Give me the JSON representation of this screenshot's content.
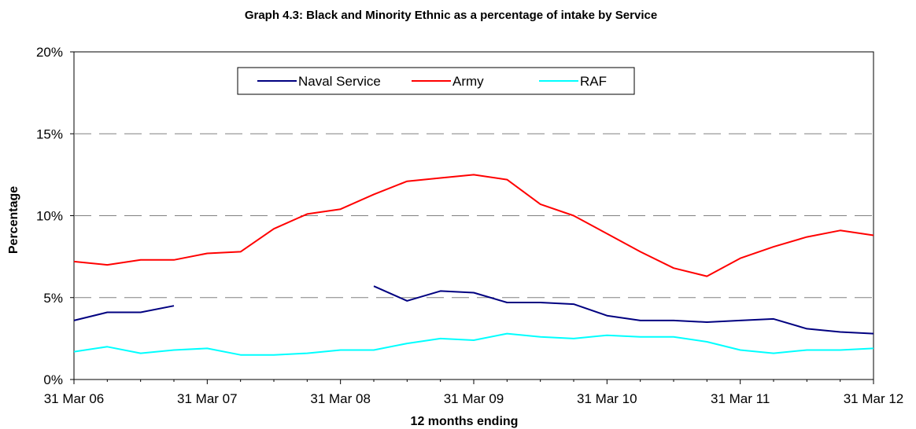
{
  "chart_data": {
    "type": "line",
    "title": "Graph 4.3: Black and Minority Ethnic as a percentage of intake by Service",
    "xlabel": "12 months ending",
    "ylabel": "Percentage",
    "ylim": [
      0,
      20
    ],
    "yticks": [
      "0%",
      "5%",
      "10%",
      "15%",
      "20%"
    ],
    "xtick_labels": [
      "31 Mar 06",
      "31 Mar 07",
      "31 Mar 08",
      "31 Mar 09",
      "31 Mar 10",
      "31 Mar 11",
      "31 Mar 12"
    ],
    "x": [
      "Mar 06",
      "Jun 06",
      "Sep 06",
      "Dec 06",
      "Mar 07",
      "Jun 07",
      "Sep 07",
      "Dec 07",
      "Mar 08",
      "Jun 08",
      "Sep 08",
      "Dec 08",
      "Mar 09",
      "Jun 09",
      "Sep 09",
      "Dec 09",
      "Mar 10",
      "Jun 10",
      "Sep 10",
      "Dec 10",
      "Mar 11",
      "Jun 11",
      "Sep 11",
      "Dec 11",
      "Mar 12"
    ],
    "grid": "horizontal dashed",
    "legend_position": "top-center",
    "series": [
      {
        "name": "Naval Service",
        "color": "#000080",
        "values": [
          3.6,
          4.1,
          4.1,
          4.5,
          null,
          null,
          null,
          null,
          null,
          5.7,
          4.8,
          5.4,
          5.3,
          4.7,
          4.7,
          4.6,
          3.9,
          3.6,
          3.6,
          3.5,
          3.6,
          3.7,
          3.1,
          2.9,
          2.8
        ]
      },
      {
        "name": "Army",
        "color": "#ff0000",
        "values": [
          7.2,
          7.0,
          7.3,
          7.3,
          7.7,
          7.8,
          9.2,
          10.1,
          10.4,
          11.3,
          12.1,
          12.3,
          12.5,
          12.2,
          10.7,
          10.0,
          8.9,
          7.8,
          6.8,
          6.3,
          7.4,
          8.1,
          8.7,
          9.1,
          8.8
        ]
      },
      {
        "name": "RAF",
        "color": "#00ffff",
        "values": [
          1.7,
          2.0,
          1.6,
          1.8,
          1.9,
          1.5,
          1.5,
          1.6,
          1.8,
          1.8,
          2.2,
          2.5,
          2.4,
          2.8,
          2.6,
          2.5,
          2.7,
          2.6,
          2.6,
          2.3,
          1.8,
          1.6,
          1.8,
          1.8,
          1.9
        ]
      }
    ]
  }
}
